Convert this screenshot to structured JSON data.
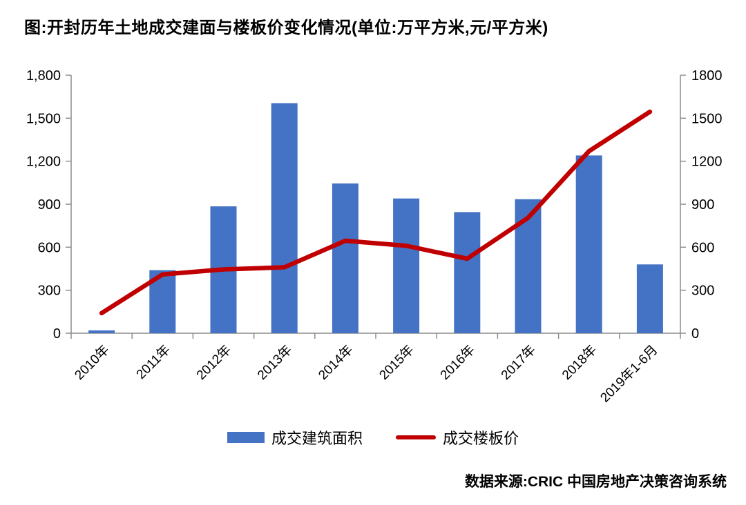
{
  "title": "图:开封历年土地成交建面与楼板价变化情况(单位:万平方米,元/平方米)",
  "source": "数据来源:CRIC 中国房地产决策咨询系统",
  "legend": {
    "bar_label": "成交建筑面积",
    "line_label": "成交楼板价"
  },
  "colors": {
    "bar": "#4472C4",
    "line": "#C00000",
    "axis": "#8C8C8C",
    "text": "#000000"
  },
  "chart_data": {
    "type": "combo-bar-line",
    "title": "图:开封历年土地成交建面与楼板价变化情况(单位:万平方米,元/平方米)",
    "categories": [
      "2010年",
      "2011年",
      "2012年",
      "2013年",
      "2014年",
      "2015年",
      "2016年",
      "2017年",
      "2018年",
      "2019年1-6月"
    ],
    "series": [
      {
        "name": "成交建筑面积",
        "type": "bar",
        "axis": "left",
        "unit": "万平方米",
        "color": "#4472C4",
        "values": [
          20,
          440,
          885,
          1605,
          1045,
          940,
          845,
          935,
          1240,
          480
        ]
      },
      {
        "name": "成交楼板价",
        "type": "line",
        "axis": "right",
        "unit": "元/平方米",
        "color": "#C00000",
        "values": [
          140,
          410,
          445,
          460,
          645,
          610,
          520,
          805,
          1270,
          1545
        ]
      }
    ],
    "left_axis": {
      "min": 0,
      "max": 1800,
      "step": 300,
      "tick_labels": [
        "0",
        "300",
        "600",
        "900",
        "1,200",
        "1,500",
        "1,800"
      ]
    },
    "right_axis": {
      "min": 0,
      "max": 1800,
      "step": 300,
      "tick_labels": [
        "0",
        "300",
        "600",
        "900",
        "1200",
        "1500",
        "1800"
      ]
    },
    "grid": false,
    "legend_position": "bottom"
  }
}
